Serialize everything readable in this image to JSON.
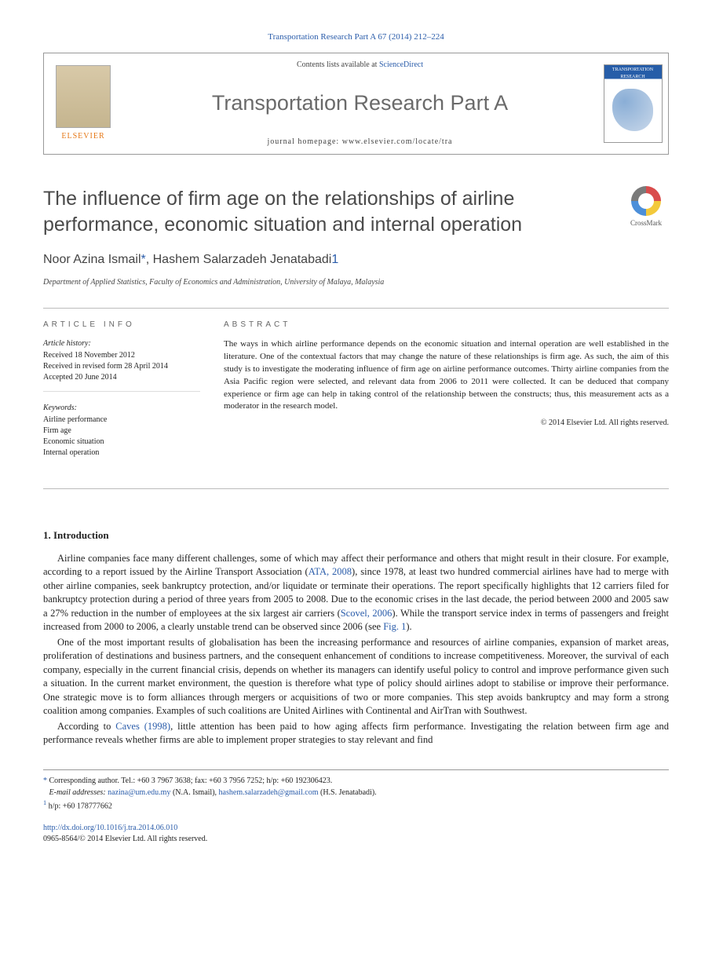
{
  "journal_ref": "Transportation Research Part A 67 (2014) 212–224",
  "header": {
    "contents_prefix": "Contents lists available at ",
    "contents_link": "ScienceDirect",
    "journal_name": "Transportation Research Part A",
    "homepage_prefix": "journal homepage: ",
    "homepage_url": "www.elsevier.com/locate/tra",
    "publisher": "ELSEVIER",
    "cover_label": "TRANSPORTATION RESEARCH"
  },
  "crossmark_label": "CrossMark",
  "title": "The influence of firm age on the relationships of airline performance, economic situation and internal operation",
  "authors": {
    "a1_name": "Noor Azina Ismail",
    "a1_mark": "*",
    "sep": ", ",
    "a2_name": "Hashem Salarzadeh Jenatabadi",
    "a2_mark": "1"
  },
  "affiliation": "Department of Applied Statistics, Faculty of Economics and Administration, University of Malaya, Malaysia",
  "info": {
    "heading": "ARTICLE INFO",
    "history_label": "Article history:",
    "received": "Received 18 November 2012",
    "revised": "Received in revised form 28 April 2014",
    "accepted": "Accepted 20 June 2014",
    "keywords_label": "Keywords:",
    "k1": "Airline performance",
    "k2": "Firm age",
    "k3": "Economic situation",
    "k4": "Internal operation"
  },
  "abstract": {
    "heading": "ABSTRACT",
    "text": "The ways in which airline performance depends on the economic situation and internal operation are well established in the literature. One of the contextual factors that may change the nature of these relationships is firm age. As such, the aim of this study is to investigate the moderating influence of firm age on airline performance outcomes. Thirty airline companies from the Asia Pacific region were selected, and relevant data from 2006 to 2011 were collected. It can be deduced that company experience or firm age can help in taking control of the relationship between the constructs; thus, this measurement acts as a moderator in the research model.",
    "copyright": "© 2014 Elsevier Ltd. All rights reserved."
  },
  "section1": {
    "heading": "1. Introduction",
    "p1a": "Airline companies face many different challenges, some of which may affect their performance and others that might result in their closure. For example, according to a report issued by the Airline Transport Association (",
    "p1_link1": "ATA, 2008",
    "p1b": "), since 1978, at least two hundred commercial airlines have had to merge with other airline companies, seek bankruptcy protection, and/or liquidate or terminate their operations. The report specifically highlights that 12 carriers filed for bankruptcy protection during a period of three years from 2005 to 2008. Due to the economic crises in the last decade, the period between 2000 and 2005 saw a 27% reduction in the number of employees at the six largest air carriers (",
    "p1_link2": "Scovel, 2006",
    "p1c": "). While the transport service index in terms of passengers and freight increased from 2000 to 2006, a clearly unstable trend can be observed since 2006 (see ",
    "p1_link3": "Fig. 1",
    "p1d": ").",
    "p2": "One of the most important results of globalisation has been the increasing performance and resources of airline companies, expansion of market areas, proliferation of destinations and business partners, and the consequent enhancement of conditions to increase competitiveness. Moreover, the survival of each company, especially in the current financial crisis, depends on whether its managers can identify useful policy to control and improve performance given such a situation. In the current market environment, the question is therefore what type of policy should airlines adopt to stabilise or improve their performance. One strategic move is to form alliances through mergers or acquisitions of two or more companies. This step avoids bankruptcy and may form a strong coalition among companies. Examples of such coalitions are United Airlines with Continental and AirTran with Southwest.",
    "p3a": "According to ",
    "p3_link1": "Caves (1998)",
    "p3b": ", little attention has been paid to how aging affects firm performance. Investigating the relation between firm age and performance reveals whether firms are able to implement proper strategies to stay relevant and find"
  },
  "footnotes": {
    "corr_mark": "*",
    "corr_text": " Corresponding author. Tel.: +60 3 7967 3638; fax: +60 3 7956 7252; h/p: +60 192306423.",
    "email_label": "E-mail addresses: ",
    "email1": "nazina@um.edu.my",
    "email1_suffix": " (N.A. Ismail), ",
    "email2": "hashem.salarzadeh@gmail.com",
    "email2_suffix": " (H.S. Jenatabadi).",
    "fn1_mark": "1",
    "fn1_text": " h/p: +60 178777662"
  },
  "footer": {
    "doi": "http://dx.doi.org/10.1016/j.tra.2014.06.010",
    "issn_line": "0965-8564/© 2014 Elsevier Ltd. All rights reserved."
  }
}
